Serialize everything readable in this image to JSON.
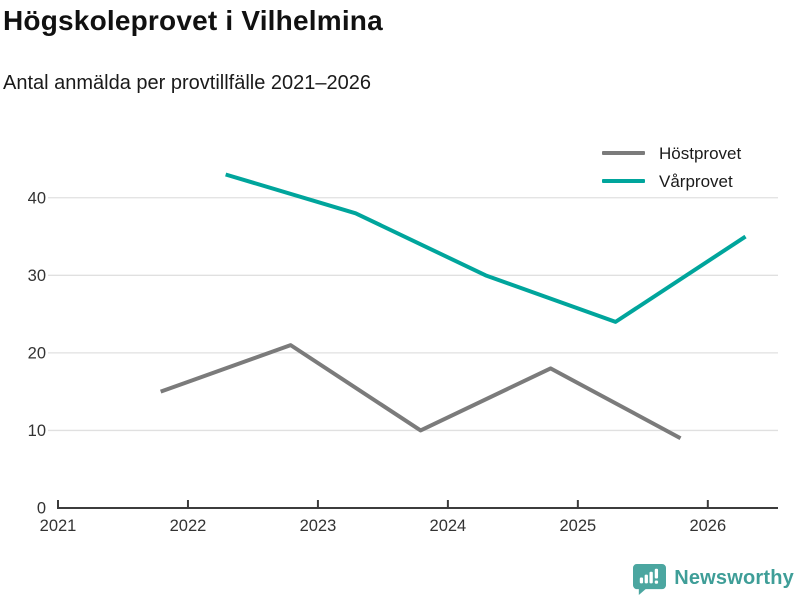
{
  "header": {
    "title": "Högskoleprovet i Vilhelmina",
    "subtitle": "Antal anmälda per provtillfälle 2021–2026"
  },
  "chart_data": {
    "type": "line",
    "title": "Högskoleprovet i Vilhelmina",
    "subtitle": "Antal anmälda per provtillfälle 2021–2026",
    "xlabel": "",
    "ylabel": "",
    "series": [
      {
        "name": "Höstprovet",
        "color": "#7b7b7b",
        "x": [
          2021.79,
          2022.79,
          2023.79,
          2024.79,
          2025.79
        ],
        "values": [
          15,
          21,
          10,
          18,
          9
        ]
      },
      {
        "name": "Vårprovet",
        "color": "#00a59c",
        "x": [
          2022.29,
          2023.29,
          2024.29,
          2025.29,
          2026.29
        ],
        "values": [
          43,
          38,
          30,
          24,
          35
        ]
      }
    ],
    "xticks": [
      2021,
      2022,
      2023,
      2024,
      2025,
      2026
    ],
    "yticks": [
      0,
      10,
      20,
      30,
      40
    ],
    "xlim": [
      2021,
      2026.54
    ],
    "ylim": [
      0,
      45
    ],
    "grid": "horizontal",
    "gridline_color": "#e0e0e0",
    "axis_color": "#3c3c3c",
    "tick_label_color": "#333333",
    "legend_position": "top-right"
  },
  "footer": {
    "brand": "Newsworthy",
    "brand_color": "#3f9e98",
    "logo_color": "#4ba6a0",
    "logo_glyph_color": "#ffffff"
  }
}
